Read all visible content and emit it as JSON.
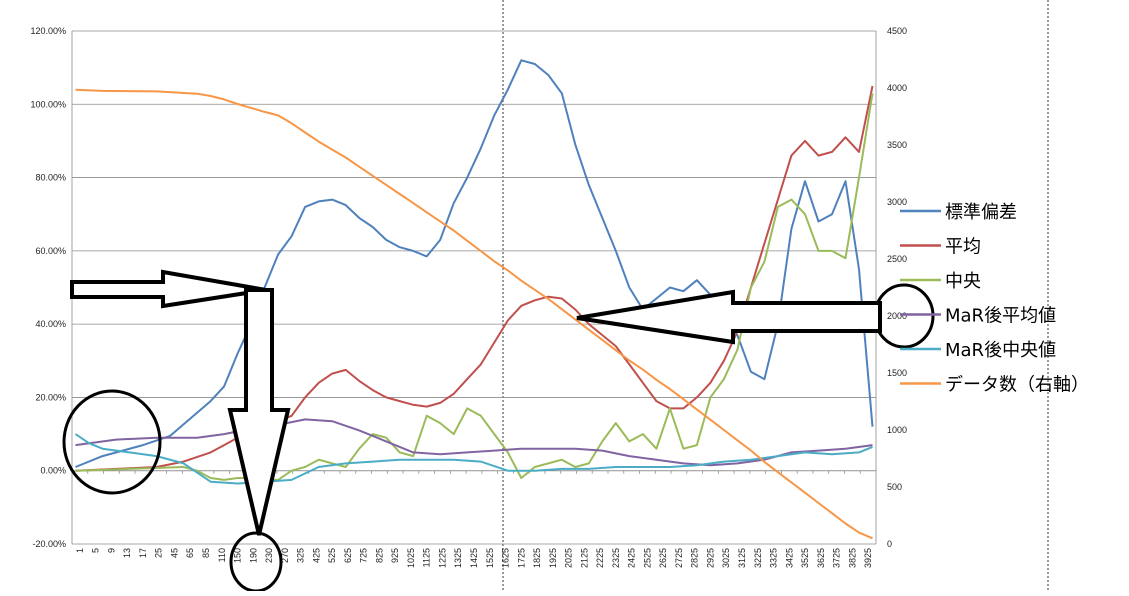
{
  "colors": {
    "grid": "#8c8c8c",
    "annotation": "#000000"
  },
  "chart_data": {
    "type": "line",
    "title": "",
    "xlabel": "",
    "ylabel": "",
    "ylim": [
      -0.2,
      1.2
    ],
    "y2lim": [
      0,
      4500
    ],
    "grid": true,
    "legend_position": "right",
    "y_ticks": [
      "120.00%",
      "100.00%",
      "80.00%",
      "60.00%",
      "40.00%",
      "20.00%",
      "0.00%",
      "-20.00%"
    ],
    "y2_ticks": [
      "4500",
      "4000",
      "3500",
      "3000",
      "2500",
      "2000",
      "1500",
      "1000",
      "500",
      "0"
    ],
    "x_ticks": [
      "1",
      "5",
      "9",
      "13",
      "17",
      "25",
      "45",
      "65",
      "85",
      "110",
      "150",
      "190",
      "230",
      "270",
      "325",
      "425",
      "525",
      "625",
      "725",
      "825",
      "925",
      "1025",
      "1125",
      "1225",
      "1325",
      "1425",
      "1525",
      "1625",
      "1725",
      "1825",
      "1925",
      "2025",
      "2125",
      "2225",
      "2325",
      "2425",
      "2525",
      "2625",
      "2725",
      "2825",
      "2925",
      "3025",
      "3125",
      "3225",
      "3325",
      "3425",
      "3525",
      "3625",
      "3725",
      "3825",
      "3925"
    ],
    "series": [
      {
        "name": "標準偏差",
        "color": "#4f81bd",
        "axis": "left",
        "points": [
          [
            0,
            0.01
          ],
          [
            2,
            0.04
          ],
          [
            5,
            0.07
          ],
          [
            7,
            0.095
          ],
          [
            10,
            0.19
          ],
          [
            11,
            0.23
          ],
          [
            12,
            0.32
          ],
          [
            13,
            0.4
          ],
          [
            14,
            0.5
          ],
          [
            15,
            0.59
          ],
          [
            16,
            0.64
          ],
          [
            17,
            0.72
          ],
          [
            18,
            0.735
          ],
          [
            19,
            0.74
          ],
          [
            20,
            0.725
          ],
          [
            21,
            0.69
          ],
          [
            22,
            0.665
          ],
          [
            23,
            0.63
          ],
          [
            24,
            0.61
          ],
          [
            25,
            0.6
          ],
          [
            26,
            0.585
          ],
          [
            27,
            0.63
          ],
          [
            28,
            0.73
          ],
          [
            29,
            0.8
          ],
          [
            30,
            0.88
          ],
          [
            31,
            0.97
          ],
          [
            32,
            1.04
          ],
          [
            33,
            1.12
          ],
          [
            34,
            1.11
          ],
          [
            35,
            1.08
          ],
          [
            36,
            1.03
          ],
          [
            37,
            0.89
          ],
          [
            38,
            0.78
          ],
          [
            39,
            0.69
          ],
          [
            40,
            0.6
          ],
          [
            41,
            0.5
          ],
          [
            42,
            0.44
          ],
          [
            43,
            0.47
          ],
          [
            44,
            0.5
          ],
          [
            45,
            0.49
          ],
          [
            46,
            0.52
          ],
          [
            47,
            0.48
          ],
          [
            48,
            0.42
          ],
          [
            49,
            0.37
          ],
          [
            50,
            0.27
          ],
          [
            51,
            0.25
          ],
          [
            52,
            0.4
          ],
          [
            53,
            0.66
          ],
          [
            54,
            0.79
          ],
          [
            55,
            0.68
          ],
          [
            56,
            0.7
          ],
          [
            57,
            0.79
          ],
          [
            58,
            0.55
          ],
          [
            59,
            0.12
          ]
        ]
      },
      {
        "name": "平均",
        "color": "#c0504d",
        "axis": "left",
        "points": [
          [
            0,
            0.0
          ],
          [
            3,
            0.005
          ],
          [
            6,
            0.01
          ],
          [
            8,
            0.025
          ],
          [
            10,
            0.05
          ],
          [
            11,
            0.07
          ],
          [
            12,
            0.09
          ],
          [
            13,
            0.105
          ],
          [
            14,
            0.12
          ],
          [
            15,
            0.135
          ],
          [
            16,
            0.15
          ],
          [
            17,
            0.2
          ],
          [
            18,
            0.24
          ],
          [
            19,
            0.265
          ],
          [
            20,
            0.275
          ],
          [
            21,
            0.245
          ],
          [
            22,
            0.22
          ],
          [
            23,
            0.2
          ],
          [
            24,
            0.19
          ],
          [
            25,
            0.18
          ],
          [
            26,
            0.175
          ],
          [
            27,
            0.185
          ],
          [
            28,
            0.21
          ],
          [
            29,
            0.25
          ],
          [
            30,
            0.29
          ],
          [
            31,
            0.35
          ],
          [
            32,
            0.41
          ],
          [
            33,
            0.45
          ],
          [
            34,
            0.465
          ],
          [
            35,
            0.475
          ],
          [
            36,
            0.47
          ],
          [
            37,
            0.44
          ],
          [
            38,
            0.4
          ],
          [
            39,
            0.37
          ],
          [
            40,
            0.34
          ],
          [
            41,
            0.29
          ],
          [
            42,
            0.24
          ],
          [
            43,
            0.19
          ],
          [
            44,
            0.17
          ],
          [
            45,
            0.17
          ],
          [
            46,
            0.2
          ],
          [
            47,
            0.24
          ],
          [
            48,
            0.3
          ],
          [
            49,
            0.38
          ],
          [
            50,
            0.5
          ],
          [
            51,
            0.62
          ],
          [
            52,
            0.74
          ],
          [
            53,
            0.86
          ],
          [
            54,
            0.9
          ],
          [
            55,
            0.86
          ],
          [
            56,
            0.87
          ],
          [
            57,
            0.91
          ],
          [
            58,
            0.87
          ],
          [
            59,
            1.05
          ]
        ]
      },
      {
        "name": "中央",
        "color": "#9bbb59",
        "axis": "left",
        "points": [
          [
            0,
            0.0
          ],
          [
            4,
            0.005
          ],
          [
            8,
            0.01
          ],
          [
            9,
            0.0
          ],
          [
            10,
            -0.02
          ],
          [
            11,
            -0.025
          ],
          [
            12,
            -0.02
          ],
          [
            13,
            -0.02
          ],
          [
            14,
            -0.025
          ],
          [
            15,
            -0.025
          ],
          [
            16,
            0.0
          ],
          [
            17,
            0.01
          ],
          [
            18,
            0.03
          ],
          [
            19,
            0.02
          ],
          [
            20,
            0.01
          ],
          [
            21,
            0.06
          ],
          [
            22,
            0.1
          ],
          [
            23,
            0.09
          ],
          [
            24,
            0.05
          ],
          [
            25,
            0.04
          ],
          [
            26,
            0.15
          ],
          [
            27,
            0.13
          ],
          [
            28,
            0.1
          ],
          [
            29,
            0.17
          ],
          [
            30,
            0.15
          ],
          [
            31,
            0.1
          ],
          [
            32,
            0.05
          ],
          [
            33,
            -0.02
          ],
          [
            34,
            0.01
          ],
          [
            35,
            0.02
          ],
          [
            36,
            0.03
          ],
          [
            37,
            0.01
          ],
          [
            38,
            0.02
          ],
          [
            39,
            0.08
          ],
          [
            40,
            0.13
          ],
          [
            41,
            0.08
          ],
          [
            42,
            0.1
          ],
          [
            43,
            0.06
          ],
          [
            44,
            0.17
          ],
          [
            45,
            0.06
          ],
          [
            46,
            0.07
          ],
          [
            47,
            0.2
          ],
          [
            48,
            0.25
          ],
          [
            49,
            0.33
          ],
          [
            50,
            0.5
          ],
          [
            51,
            0.57
          ],
          [
            52,
            0.72
          ],
          [
            53,
            0.74
          ],
          [
            54,
            0.7
          ],
          [
            55,
            0.6
          ],
          [
            56,
            0.6
          ],
          [
            57,
            0.58
          ],
          [
            58,
            0.8
          ],
          [
            59,
            1.03
          ]
        ]
      },
      {
        "name": "MaR後平均値",
        "color": "#8064a2",
        "axis": "left",
        "points": [
          [
            0,
            0.07
          ],
          [
            3,
            0.085
          ],
          [
            6,
            0.09
          ],
          [
            9,
            0.09
          ],
          [
            11,
            0.1
          ],
          [
            13,
            0.115
          ],
          [
            15,
            0.125
          ],
          [
            17,
            0.14
          ],
          [
            19,
            0.135
          ],
          [
            21,
            0.11
          ],
          [
            23,
            0.08
          ],
          [
            25,
            0.05
          ],
          [
            27,
            0.045
          ],
          [
            29,
            0.05
          ],
          [
            31,
            0.055
          ],
          [
            33,
            0.06
          ],
          [
            35,
            0.06
          ],
          [
            37,
            0.06
          ],
          [
            39,
            0.055
          ],
          [
            41,
            0.04
          ],
          [
            43,
            0.03
          ],
          [
            45,
            0.02
          ],
          [
            47,
            0.015
          ],
          [
            49,
            0.02
          ],
          [
            51,
            0.03
          ],
          [
            53,
            0.05
          ],
          [
            55,
            0.055
          ],
          [
            57,
            0.06
          ],
          [
            59,
            0.07
          ]
        ]
      },
      {
        "name": "MaR後中央値",
        "color": "#4bacc6",
        "axis": "left",
        "points": [
          [
            0,
            0.1
          ],
          [
            1,
            0.075
          ],
          [
            2,
            0.06
          ],
          [
            4,
            0.05
          ],
          [
            6,
            0.04
          ],
          [
            8,
            0.02
          ],
          [
            10,
            -0.03
          ],
          [
            12,
            -0.035
          ],
          [
            14,
            -0.03
          ],
          [
            16,
            -0.025
          ],
          [
            18,
            0.01
          ],
          [
            20,
            0.02
          ],
          [
            22,
            0.025
          ],
          [
            24,
            0.03
          ],
          [
            26,
            0.03
          ],
          [
            28,
            0.03
          ],
          [
            30,
            0.025
          ],
          [
            32,
            0.0
          ],
          [
            34,
            0.0
          ],
          [
            36,
            0.005
          ],
          [
            38,
            0.005
          ],
          [
            40,
            0.01
          ],
          [
            42,
            0.01
          ],
          [
            44,
            0.01
          ],
          [
            46,
            0.015
          ],
          [
            48,
            0.025
          ],
          [
            50,
            0.03
          ],
          [
            52,
            0.04
          ],
          [
            54,
            0.05
          ],
          [
            56,
            0.045
          ],
          [
            58,
            0.05
          ],
          [
            59,
            0.065
          ]
        ]
      },
      {
        "name": "データ数（右軸）",
        "color": "#f79646",
        "axis": "right",
        "points": [
          [
            0,
            3985
          ],
          [
            2,
            3975
          ],
          [
            6,
            3970
          ],
          [
            9,
            3950
          ],
          [
            10,
            3930
          ],
          [
            11,
            3900
          ],
          [
            12,
            3860
          ],
          [
            13,
            3825
          ],
          [
            14,
            3790
          ],
          [
            15,
            3760
          ],
          [
            16,
            3690
          ],
          [
            17,
            3610
          ],
          [
            18,
            3530
          ],
          [
            19,
            3460
          ],
          [
            20,
            3390
          ],
          [
            21,
            3310
          ],
          [
            22,
            3230
          ],
          [
            23,
            3150
          ],
          [
            24,
            3070
          ],
          [
            25,
            2990
          ],
          [
            26,
            2910
          ],
          [
            27,
            2830
          ],
          [
            28,
            2750
          ],
          [
            29,
            2660
          ],
          [
            30,
            2570
          ],
          [
            31,
            2480
          ],
          [
            32,
            2400
          ],
          [
            33,
            2310
          ],
          [
            34,
            2230
          ],
          [
            35,
            2150
          ],
          [
            36,
            2060
          ],
          [
            37,
            1970
          ],
          [
            38,
            1880
          ],
          [
            39,
            1790
          ],
          [
            40,
            1700
          ],
          [
            41,
            1610
          ],
          [
            42,
            1530
          ],
          [
            43,
            1440
          ],
          [
            44,
            1360
          ],
          [
            45,
            1270
          ],
          [
            46,
            1180
          ],
          [
            47,
            1090
          ],
          [
            48,
            1000
          ],
          [
            49,
            910
          ],
          [
            50,
            820
          ],
          [
            51,
            720
          ],
          [
            52,
            630
          ],
          [
            53,
            540
          ],
          [
            54,
            450
          ],
          [
            55,
            360
          ],
          [
            56,
            270
          ],
          [
            57,
            180
          ],
          [
            58,
            100
          ],
          [
            59,
            50
          ]
        ]
      }
    ]
  }
}
